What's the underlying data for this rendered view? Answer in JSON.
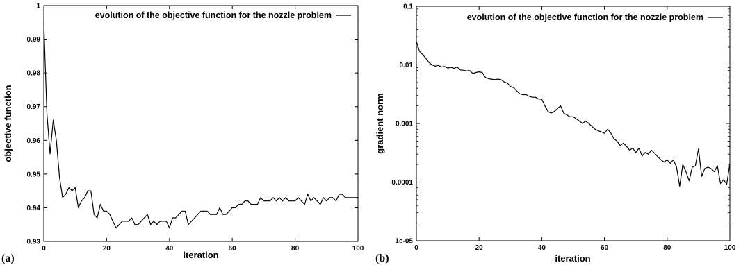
{
  "chart_data": [
    {
      "panel_label": "(a)",
      "type": "line",
      "xlabel": "iteration",
      "ylabel": "objective function",
      "xlim": [
        0,
        100
      ],
      "ylim": [
        0.93,
        1.0
      ],
      "yscale": "linear",
      "x_ticks": [
        "0",
        "20",
        "40",
        "60",
        "80",
        "100"
      ],
      "y_ticks": [
        "0.93",
        "0.94",
        "0.95",
        "0.96",
        "0.97",
        "0.98",
        "0.99",
        "1"
      ],
      "legend": "top-right",
      "series": [
        {
          "name": "evolution of the objective function for the nozzle problem",
          "x": [
            0,
            1,
            2,
            3,
            4,
            5,
            6,
            7,
            8,
            9,
            10,
            11,
            12,
            13,
            14,
            15,
            16,
            17,
            18,
            19,
            20,
            21,
            22,
            23,
            24,
            25,
            26,
            27,
            28,
            29,
            30,
            31,
            32,
            33,
            34,
            35,
            36,
            37,
            38,
            39,
            40,
            41,
            42,
            43,
            44,
            45,
            46,
            47,
            48,
            49,
            50,
            51,
            52,
            53,
            54,
            55,
            56,
            57,
            58,
            59,
            60,
            61,
            62,
            63,
            64,
            65,
            66,
            67,
            68,
            69,
            70,
            71,
            72,
            73,
            74,
            75,
            76,
            77,
            78,
            79,
            80,
            81,
            82,
            83,
            84,
            85,
            86,
            87,
            88,
            89,
            90,
            91,
            92,
            93,
            94,
            95,
            96,
            97,
            98,
            99,
            100
          ],
          "y": [
            0.995,
            0.968,
            0.956,
            0.966,
            0.96,
            0.949,
            0.943,
            0.944,
            0.946,
            0.945,
            0.946,
            0.94,
            0.942,
            0.943,
            0.945,
            0.945,
            0.938,
            0.937,
            0.941,
            0.939,
            0.939,
            0.938,
            0.936,
            0.934,
            0.935,
            0.936,
            0.936,
            0.936,
            0.937,
            0.935,
            0.935,
            0.936,
            0.937,
            0.938,
            0.935,
            0.936,
            0.935,
            0.936,
            0.936,
            0.936,
            0.934,
            0.937,
            0.937,
            0.938,
            0.939,
            0.939,
            0.935,
            0.936,
            0.937,
            0.938,
            0.939,
            0.939,
            0.939,
            0.938,
            0.938,
            0.938,
            0.94,
            0.938,
            0.938,
            0.939,
            0.94,
            0.94,
            0.941,
            0.941,
            0.942,
            0.942,
            0.941,
            0.941,
            0.941,
            0.943,
            0.942,
            0.942,
            0.942,
            0.943,
            0.942,
            0.943,
            0.942,
            0.943,
            0.942,
            0.942,
            0.942,
            0.943,
            0.942,
            0.941,
            0.944,
            0.942,
            0.943,
            0.942,
            0.941,
            0.943,
            0.942,
            0.943,
            0.943,
            0.942,
            0.944,
            0.944,
            0.943,
            0.943,
            0.943,
            0.943,
            0.943
          ]
        }
      ]
    },
    {
      "panel_label": "(b)",
      "type": "line",
      "xlabel": "iteration",
      "ylabel": "gradient norm",
      "xlim": [
        0,
        100
      ],
      "ylim": [
        1e-05,
        0.1
      ],
      "yscale": "log",
      "x_ticks": [
        "0",
        "20",
        "40",
        "60",
        "80",
        "100"
      ],
      "y_ticks": [
        "1e-05",
        "0.0001",
        "0.001",
        "0.01",
        "0.1"
      ],
      "legend": "top-right",
      "series": [
        {
          "name": "evolution of the objective function for the nozzle problem",
          "x": [
            0,
            1,
            2,
            3,
            4,
            5,
            6,
            7,
            8,
            9,
            10,
            11,
            12,
            13,
            14,
            15,
            16,
            17,
            18,
            19,
            20,
            21,
            22,
            23,
            24,
            25,
            26,
            27,
            28,
            29,
            30,
            31,
            32,
            33,
            34,
            35,
            36,
            37,
            38,
            39,
            40,
            41,
            42,
            43,
            44,
            45,
            46,
            47,
            48,
            49,
            50,
            51,
            52,
            53,
            54,
            55,
            56,
            57,
            58,
            59,
            60,
            61,
            62,
            63,
            64,
            65,
            66,
            67,
            68,
            69,
            70,
            71,
            72,
            73,
            74,
            75,
            76,
            77,
            78,
            79,
            80,
            81,
            82,
            83,
            84,
            85,
            86,
            87,
            88,
            89,
            90,
            91,
            92,
            93,
            94,
            95,
            96,
            97,
            98,
            99,
            100
          ],
          "y": [
            0.025,
            0.017,
            0.015,
            0.013,
            0.011,
            0.01,
            0.0095,
            0.0098,
            0.0092,
            0.0094,
            0.0088,
            0.0091,
            0.0087,
            0.0092,
            0.0082,
            0.0081,
            0.0079,
            0.008,
            0.0071,
            0.0074,
            0.0076,
            0.0074,
            0.0061,
            0.0058,
            0.0057,
            0.0056,
            0.0057,
            0.0056,
            0.0051,
            0.0049,
            0.0043,
            0.0041,
            0.0036,
            0.0032,
            0.0031,
            0.0031,
            0.0029,
            0.0028,
            0.0028,
            0.0026,
            0.0026,
            0.002,
            0.0016,
            0.0015,
            0.0016,
            0.0018,
            0.002,
            0.0015,
            0.0014,
            0.0013,
            0.0013,
            0.0012,
            0.0011,
            0.001,
            0.0011,
            0.001,
            0.00089,
            0.0008,
            0.00075,
            0.00072,
            0.00068,
            0.0008,
            0.00069,
            0.00055,
            0.0005,
            0.00042,
            0.00046,
            0.00041,
            0.00035,
            0.00038,
            0.00032,
            0.00038,
            0.00028,
            0.00032,
            0.0003,
            0.00035,
            0.00031,
            0.00027,
            0.00024,
            0.00022,
            0.00024,
            0.00021,
            0.00024,
            0.00018,
            8.5e-05,
            0.0002,
            0.00015,
            0.000105,
            0.00018,
            0.00019,
            0.00037,
            0.000125,
            0.00017,
            0.00018,
            0.00017,
            0.00015,
            0.00019,
            9.5e-05,
            0.00011,
            9.2e-05,
            0.00021
          ]
        }
      ]
    }
  ]
}
